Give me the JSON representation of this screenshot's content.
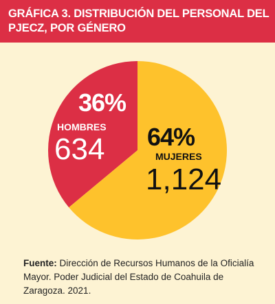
{
  "header": {
    "title": "GRÁFICA 3. DISTRIBUCIÓN DEL PERSONAL DEL PJECZ, POR GÉNERO"
  },
  "colors": {
    "header_bg": "#dc2f45",
    "page_bg": "#fdf3d3",
    "hombres": "#dc2f45",
    "mujeres": "#fec22c"
  },
  "chart_data": {
    "type": "pie",
    "slices": [
      {
        "label": "HOMBRES",
        "percent": "36%",
        "value": 634,
        "value_text": "634"
      },
      {
        "label": "MUJERES",
        "percent": "64%",
        "value": 1124,
        "value_text": "1,124"
      }
    ]
  },
  "source": {
    "label": "Fuente:",
    "text": " Dirección de Recursos Humanos de la Oficialía Mayor. Poder Judicial del Estado de Coahuila de Zaragoza. 2021."
  }
}
